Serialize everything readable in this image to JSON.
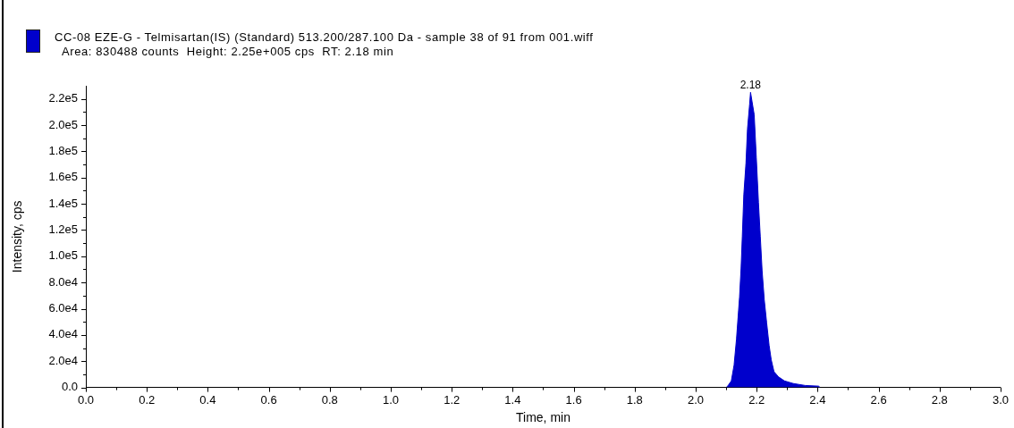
{
  "chart_data": {
    "type": "area",
    "series": [
      {
        "name": "CC-08 EZE-G - Telmisartan(IS) (Standard) 513.200/287.100 Da - sample 38 of 91 from 001.wiff",
        "color": "#0000cc",
        "x": [
          2.1,
          2.105,
          2.117,
          2.126,
          2.134,
          2.139,
          2.144,
          2.149,
          2.153,
          2.158,
          2.165,
          2.17,
          2.177,
          2.18,
          2.192,
          2.199,
          2.206,
          2.212,
          2.218,
          2.225,
          2.233,
          2.241,
          2.248,
          2.257,
          2.272,
          2.291,
          2.32,
          2.359,
          2.403,
          2.408
        ],
        "values": [
          0,
          1000,
          5000,
          17000,
          37000,
          53000,
          69000,
          91000,
          115000,
          147000,
          171000,
          197000,
          216000,
          225000,
          208000,
          175000,
          141000,
          115000,
          89000,
          67000,
          49000,
          32000,
          21000,
          12000,
          8000,
          5000,
          3000,
          1500,
          1000,
          0
        ]
      }
    ],
    "xlabel": "Time, min",
    "ylabel": "Intensity, cps",
    "annotations": [
      "Area: 830488 counts  Height: 2.25e+005 cps  RT: 2.18 min",
      {
        "text": "2.18",
        "x": 2.18,
        "y": 225000
      }
    ],
    "legend": "top left",
    "xlim": [
      0,
      3
    ],
    "xticks": [
      {
        "value": 0,
        "label": "0.0"
      },
      {
        "value": 0.1,
        "label": null
      },
      0.2,
      {
        "value": 0.3,
        "label": null
      },
      0.4,
      {
        "value": 0.5,
        "label": null
      },
      0.6,
      {
        "value": 0.7,
        "label": null
      },
      0.8,
      {
        "value": 0.9,
        "label": null
      },
      {
        "value": 1,
        "label": "1.0"
      },
      {
        "value": 1.1,
        "label": null
      },
      1.2,
      {
        "value": 1.3,
        "label": null
      },
      1.4,
      {
        "value": 1.5,
        "label": null
      },
      1.6,
      {
        "value": 1.7,
        "label": null
      },
      1.8,
      {
        "value": 1.9,
        "label": null
      },
      {
        "value": 2,
        "label": "2.0"
      },
      {
        "value": 2.1,
        "label": null
      },
      2.2,
      {
        "value": 2.3,
        "label": null
      },
      2.4,
      {
        "value": 2.5,
        "label": null
      },
      2.6,
      {
        "value": 2.7,
        "label": null
      },
      2.8,
      {
        "value": 2.9,
        "label": null
      },
      {
        "value": 3,
        "label": "3.0"
      }
    ],
    "ylim": [
      0,
      230000
    ],
    "yticks": [
      {
        "value": 0,
        "label": "0.0"
      },
      {
        "value": 10000,
        "label": null
      },
      {
        "value": 20000,
        "label": "2.0e4"
      },
      {
        "value": 30000,
        "label": null
      },
      {
        "value": 40000,
        "label": "4.0e4"
      },
      {
        "value": 50000,
        "label": null
      },
      {
        "value": 60000,
        "label": "6.0e4"
      },
      {
        "value": 70000,
        "label": null
      },
      {
        "value": 80000,
        "label": "8.0e4"
      },
      {
        "value": 90000,
        "label": null
      },
      {
        "value": 100000,
        "label": "1.0e5"
      },
      {
        "value": 110000,
        "label": null
      },
      {
        "value": 120000,
        "label": "1.2e5"
      },
      {
        "value": 130000,
        "label": null
      },
      {
        "value": 140000,
        "label": "1.4e5"
      },
      {
        "value": 150000,
        "label": null
      },
      {
        "value": 160000,
        "label": "1.6e5"
      },
      {
        "value": 170000,
        "label": null
      },
      {
        "value": 180000,
        "label": "1.8e5"
      },
      {
        "value": 190000,
        "label": null
      },
      {
        "value": 200000,
        "label": "2.0e5"
      },
      {
        "value": 210000,
        "label": null
      },
      {
        "value": 220000,
        "label": "2.2e5"
      }
    ]
  }
}
